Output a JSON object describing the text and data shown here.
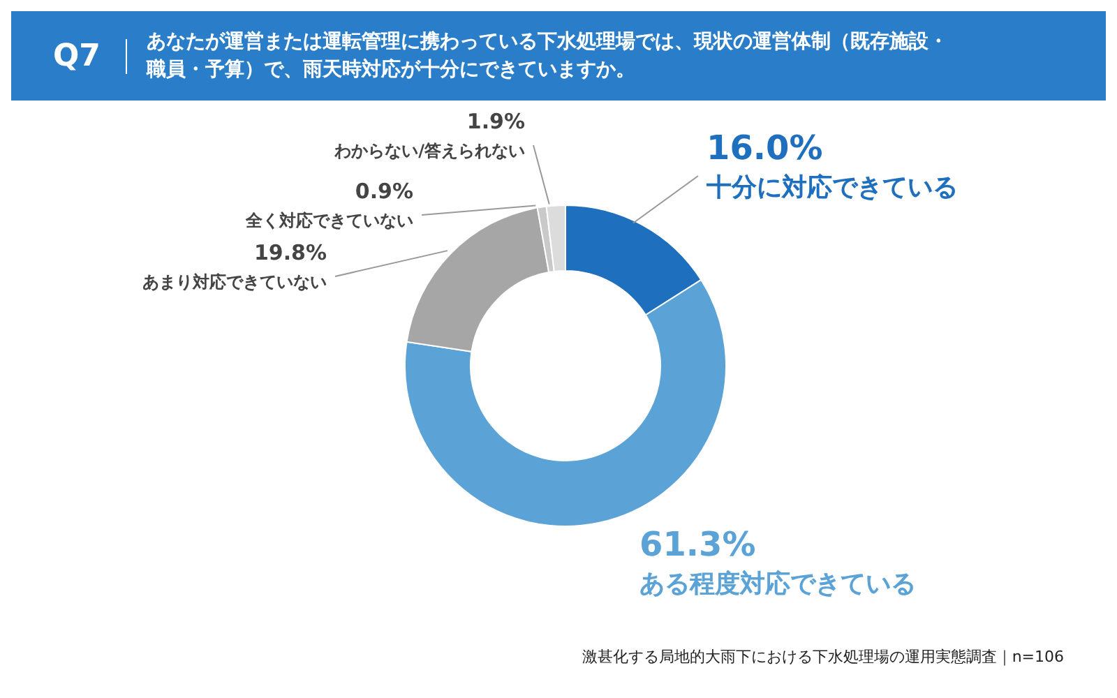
{
  "chart_data": {
    "type": "donut",
    "title": "Q7",
    "subtitle": "あなたが運営または運転管理に携わっている下水処理場では、現状の運営体制（既存施設・職員・予算）で、雨天時対応が十分にできていますか。",
    "categories": [
      "十分に対応できている",
      "ある程度対応できている",
      "あまり対応できていない",
      "全く対応できていない",
      "わからない/答えられない"
    ],
    "values": [
      16.0,
      61.3,
      19.8,
      0.9,
      1.9
    ],
    "colors": [
      "#1f6fbf",
      "#5ba3d6",
      "#a6a6a6",
      "#c9c9c9",
      "#dcdcdc"
    ],
    "value_labels": [
      "16.0%",
      "61.3%",
      "19.8%",
      "0.9%",
      "1.9%"
    ],
    "annotations": [
      "激甚化する局地的大雨下における下水処理場の運用実態調査｜n=106"
    ]
  }
}
